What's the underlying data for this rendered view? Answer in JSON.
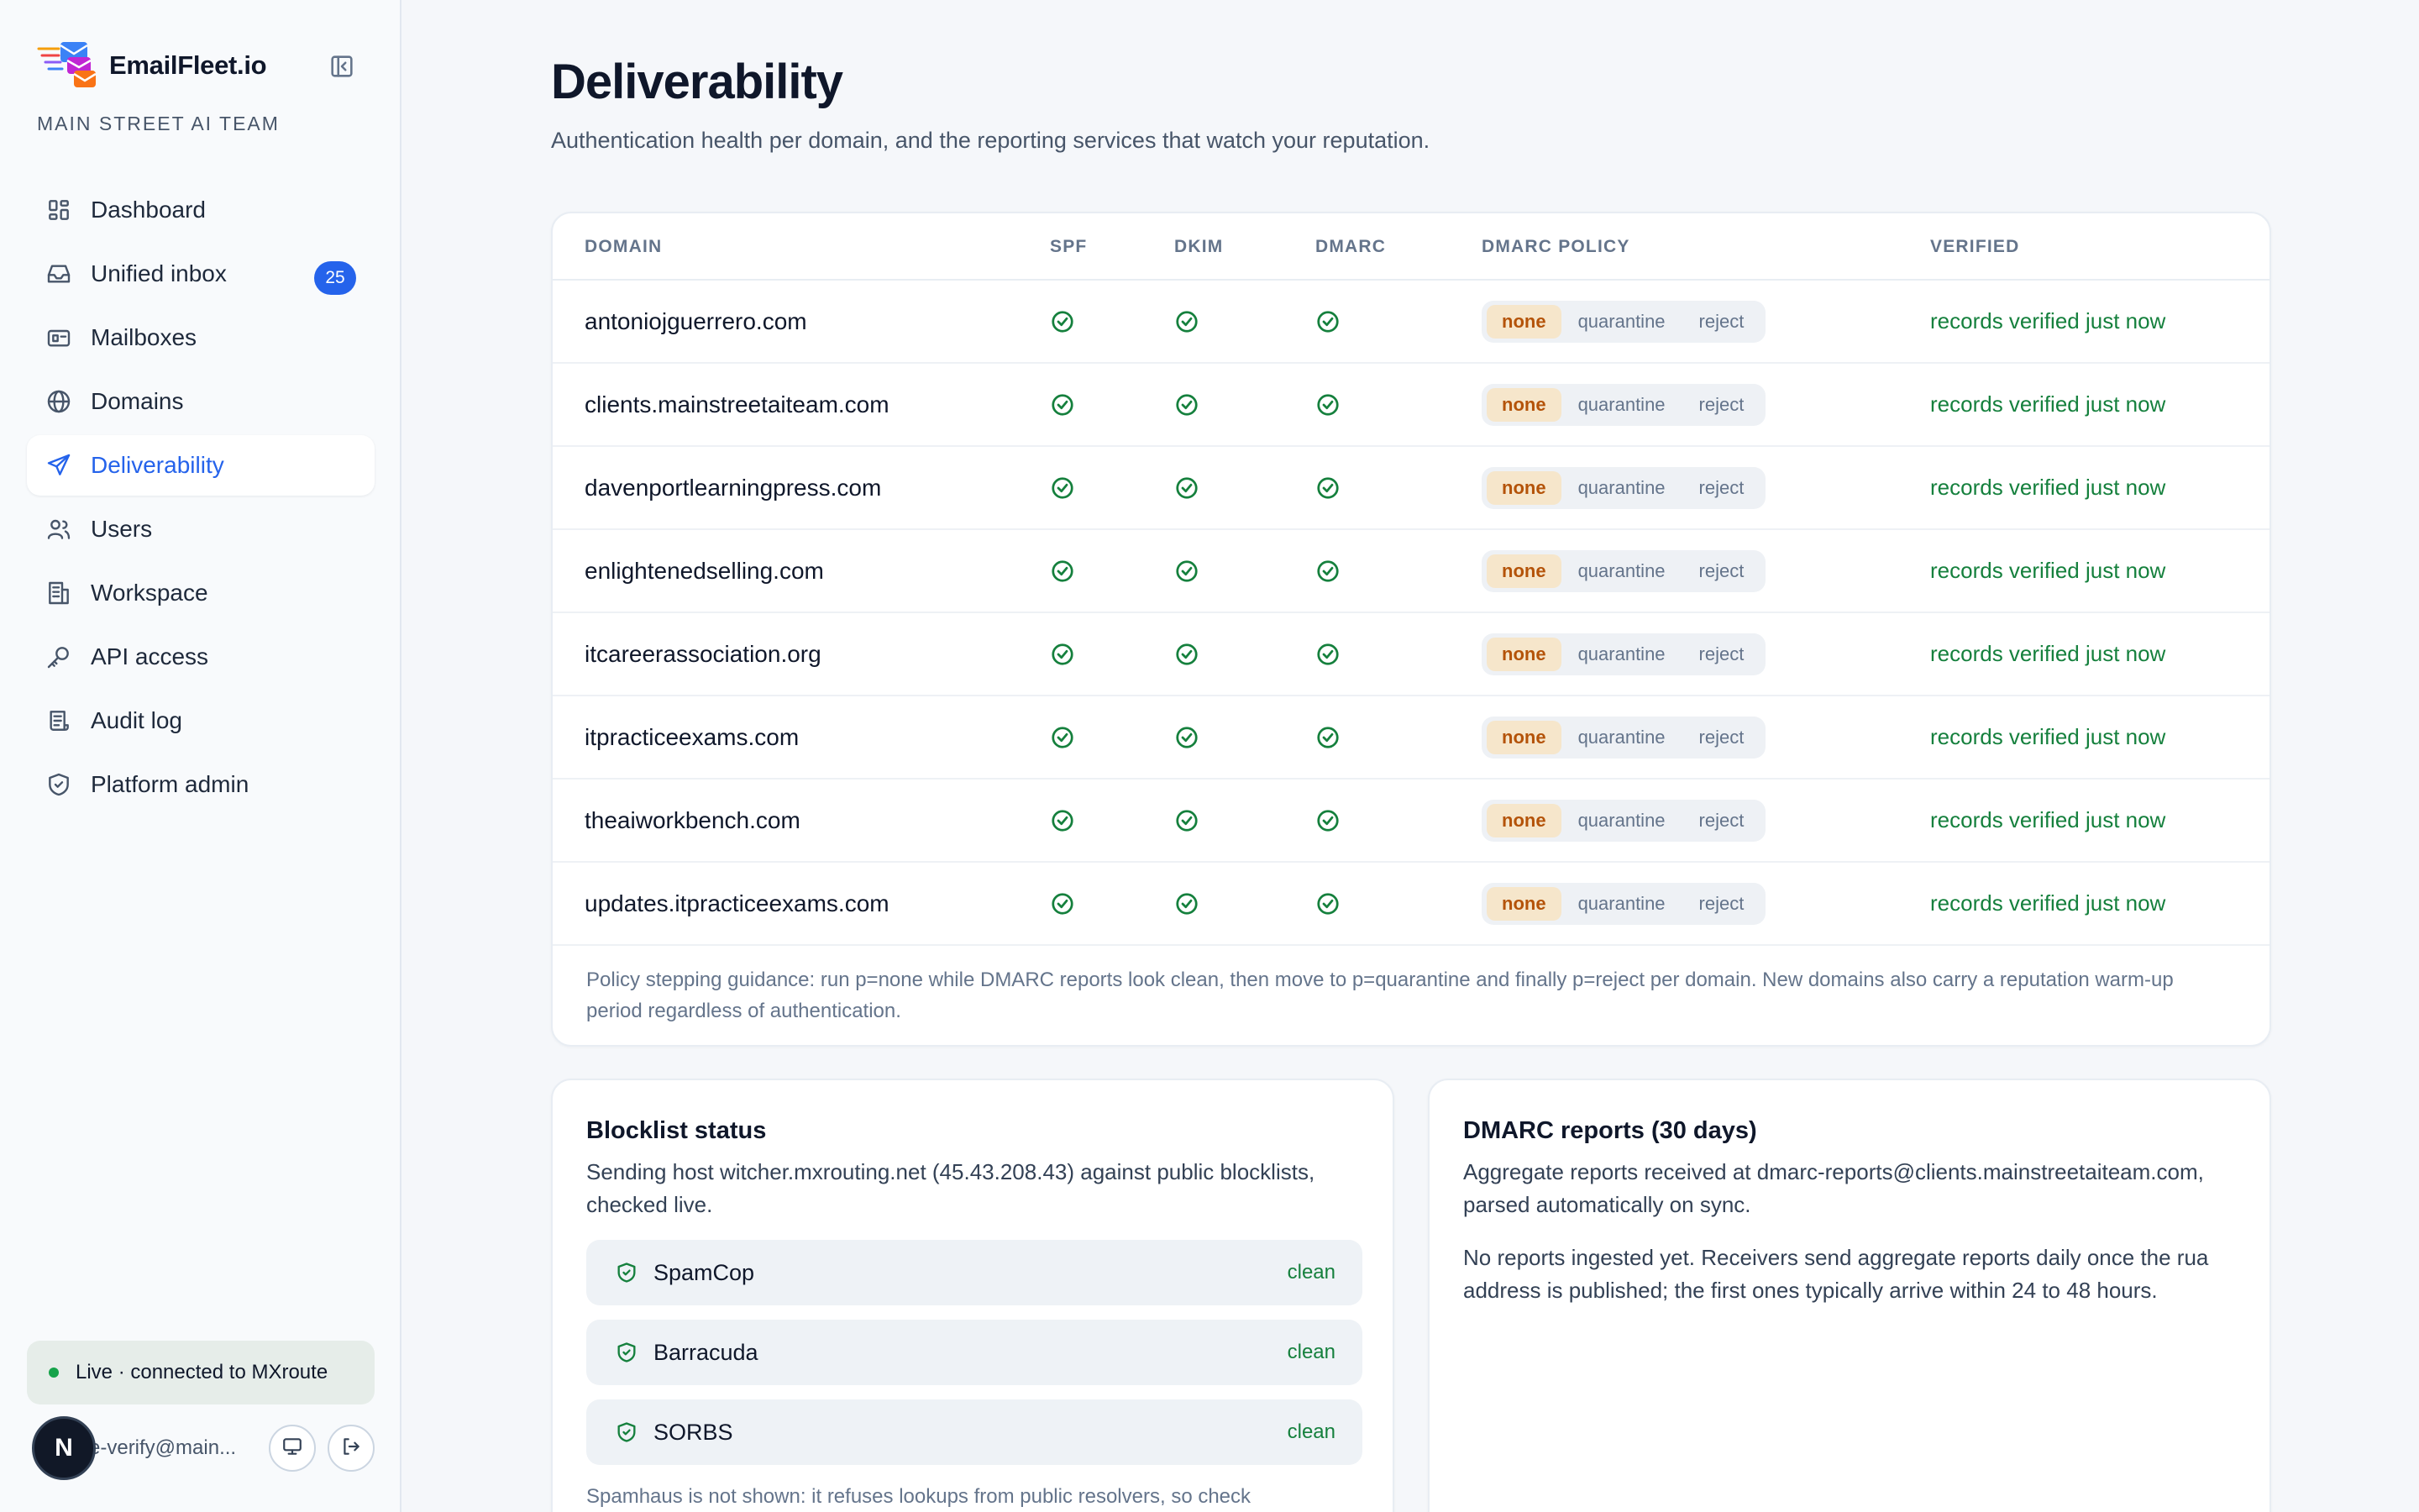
{
  "brand": {
    "name": "EmailFleet.io",
    "team": "MAIN STREET AI TEAM"
  },
  "nav": [
    {
      "id": "dashboard",
      "label": "Dashboard",
      "icon": "dashboard-icon"
    },
    {
      "id": "unified-inbox",
      "label": "Unified inbox",
      "icon": "inbox-icon",
      "badge": "25"
    },
    {
      "id": "mailboxes",
      "label": "Mailboxes",
      "icon": "mailbox-icon"
    },
    {
      "id": "domains",
      "label": "Domains",
      "icon": "globe-icon"
    },
    {
      "id": "deliverability",
      "label": "Deliverability",
      "icon": "send-icon",
      "active": true
    },
    {
      "id": "users",
      "label": "Users",
      "icon": "users-icon"
    },
    {
      "id": "workspace",
      "label": "Workspace",
      "icon": "building-icon"
    },
    {
      "id": "api-access",
      "label": "API access",
      "icon": "key-icon"
    },
    {
      "id": "audit-log",
      "label": "Audit log",
      "icon": "log-icon"
    },
    {
      "id": "platform-admin",
      "label": "Platform admin",
      "icon": "shield-icon"
    }
  ],
  "status": {
    "label": "Live · connected to MXroute"
  },
  "user": {
    "initial": "N",
    "email": "e-verify@main..."
  },
  "page": {
    "title": "Deliverability",
    "subtitle": "Authentication health per domain, and the reporting services that watch your reputation."
  },
  "table": {
    "headers": {
      "domain": "DOMAIN",
      "spf": "SPF",
      "dkim": "DKIM",
      "dmarc": "DMARC",
      "policy": "DMARC POLICY",
      "verified": "VERIFIED"
    },
    "policy_options": [
      "none",
      "quarantine",
      "reject"
    ],
    "rows": [
      {
        "domain": "antoniojguerrero.com",
        "policy": "none",
        "verified": "records verified just now"
      },
      {
        "domain": "clients.mainstreetaiteam.com",
        "policy": "none",
        "verified": "records verified just now"
      },
      {
        "domain": "davenportlearningpress.com",
        "policy": "none",
        "verified": "records verified just now"
      },
      {
        "domain": "enlightenedselling.com",
        "policy": "none",
        "verified": "records verified just now"
      },
      {
        "domain": "itcareerassociation.org",
        "policy": "none",
        "verified": "records verified just now"
      },
      {
        "domain": "itpracticeexams.com",
        "policy": "none",
        "verified": "records verified just now"
      },
      {
        "domain": "theaiworkbench.com",
        "policy": "none",
        "verified": "records verified just now"
      },
      {
        "domain": "updates.itpracticeexams.com",
        "policy": "none",
        "verified": "records verified just now"
      }
    ],
    "footnote": "Policy stepping guidance: run p=none while DMARC reports look clean, then move to p=quarantine and finally p=reject per domain. New domains also carry a reputation warm-up period regardless of authentication."
  },
  "blocklist": {
    "title": "Blocklist status",
    "description": "Sending host witcher.mxrouting.net (45.43.208.43) against public blocklists, checked live.",
    "items": [
      {
        "name": "SpamCop",
        "status": "clean"
      },
      {
        "name": "Barracuda",
        "status": "clean"
      },
      {
        "name": "SORBS",
        "status": "clean"
      }
    ],
    "note": "Spamhaus is not shown: it refuses lookups from public resolvers, so check"
  },
  "dmarc_reports": {
    "title": "DMARC reports (30 days)",
    "description": "Aggregate reports received at dmarc-reports@clients.mainstreetaiteam.com, parsed automatically on sync.",
    "empty": "No reports ingested yet. Receivers send aggregate reports daily once the rua address is published; the first ones typically arrive within 24 to 48 hours."
  },
  "colors": {
    "accent": "#2563eb",
    "success": "#15803d",
    "policy_selected_bg": "#f6e6cb",
    "policy_selected_text": "#b45309"
  }
}
